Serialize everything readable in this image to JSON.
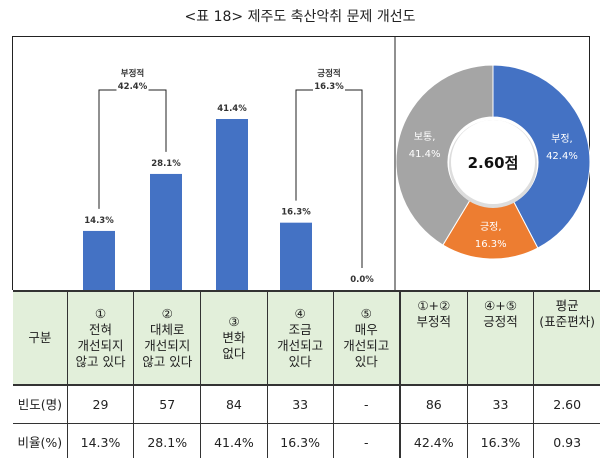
{
  "title": "<표 18> 제주도 축산악취 문제 개선도",
  "chart_data": [
    {
      "type": "bar",
      "categories": [
        "①",
        "②",
        "③",
        "④",
        "⑤"
      ],
      "values": [
        14.3,
        28.1,
        41.4,
        16.3,
        0.0
      ],
      "value_labels": [
        "14.3%",
        "28.1%",
        "41.4%",
        "16.3%",
        "0.0%"
      ],
      "ylim": [
        0,
        45
      ],
      "color": "#4472c4",
      "annotations": [
        {
          "label": "부정적",
          "value": "42.4%",
          "span": [
            0,
            1
          ]
        },
        {
          "label": "긍정적",
          "value": "16.3%",
          "span": [
            3,
            4
          ]
        }
      ]
    },
    {
      "type": "pie",
      "center_label": "2.60점",
      "slices": [
        {
          "label": "부정,",
          "value": 42.4,
          "text": "42.4%",
          "color": "#4472c4"
        },
        {
          "label": "긍정,",
          "value": 16.3,
          "text": "16.3%",
          "color": "#ed7d31"
        },
        {
          "label": "보통,",
          "value": 41.4,
          "text": "41.4%",
          "color": "#a5a5a5"
        }
      ]
    }
  ],
  "table": {
    "headers": [
      [
        "구분"
      ],
      [
        "①",
        "전혀",
        "개선되지",
        "않고 있다"
      ],
      [
        "②",
        "대체로",
        "개선되지",
        "않고 있다"
      ],
      [
        "③",
        "변화",
        "없다"
      ],
      [
        "④",
        "조금",
        "개선되고",
        "있다"
      ],
      [
        "⑤",
        "매우",
        "개선되고",
        "있다"
      ],
      [
        "①+②",
        "부정적"
      ],
      [
        "④+⑤",
        "긍정적"
      ],
      [
        "평균",
        "(표준편차)"
      ]
    ],
    "rows": [
      [
        "빈도(명)",
        "29",
        "57",
        "84",
        "33",
        "-",
        "86",
        "33",
        "2.60"
      ],
      [
        "비율(%)",
        "14.3%",
        "28.1%",
        "41.4%",
        "16.3%",
        "-",
        "42.4%",
        "16.3%",
        "0.93"
      ]
    ]
  }
}
